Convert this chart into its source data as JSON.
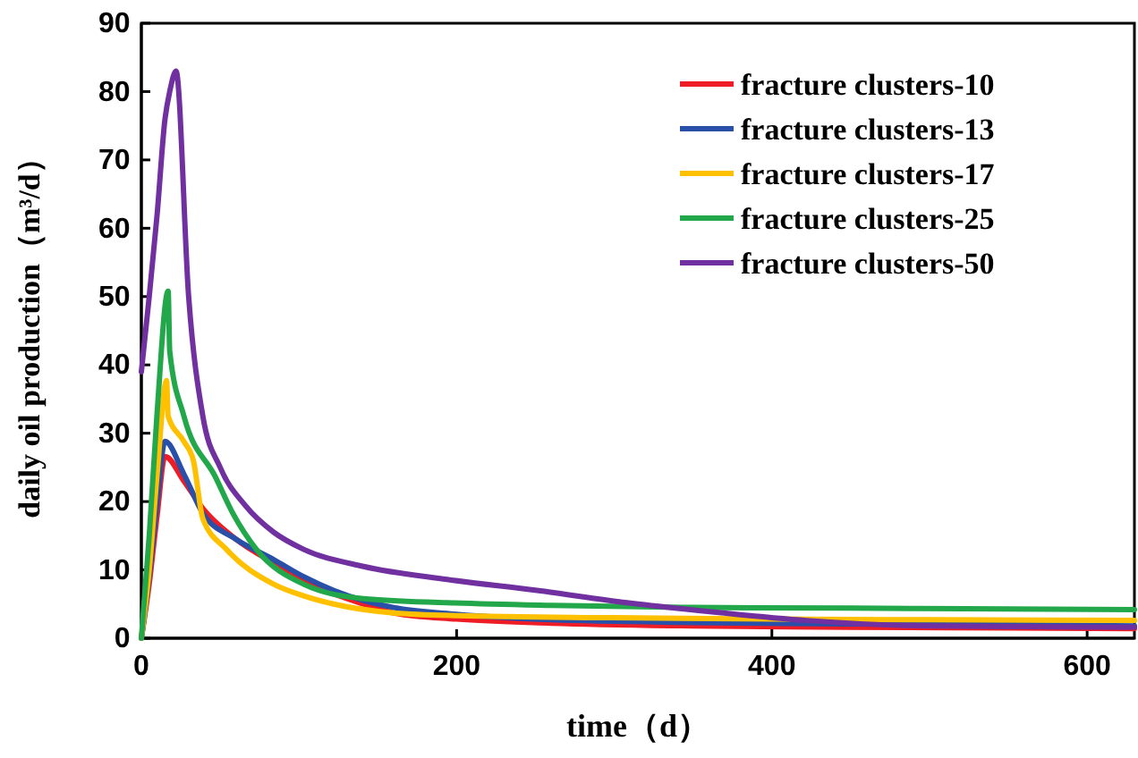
{
  "chart_data": {
    "type": "line",
    "xlabel": "time（d）",
    "ylabel": "daily oil production（m³/d）",
    "xlim": [
      0,
      630
    ],
    "xticks": [
      0,
      200,
      400,
      600
    ],
    "ylim": [
      0,
      90
    ],
    "yticks": [
      0,
      10,
      20,
      30,
      40,
      50,
      60,
      70,
      80,
      90
    ],
    "grid": false,
    "legend": "top right",
    "marker": "none",
    "line_style": "solid",
    "series": [
      {
        "name": "fracture clusters-10",
        "color": "#ee1c25",
        "x": [
          0,
          5,
          10,
          15,
          27,
          39,
          60,
          84,
          103,
          122,
          141,
          160,
          200,
          260,
          350,
          450,
          550,
          630
        ],
        "values": [
          0,
          8,
          18,
          26.6,
          23,
          19,
          14.5,
          11,
          8.5,
          6.5,
          5,
          3.7,
          2.8,
          2.2,
          1.8,
          1.6,
          1.5,
          1.4
        ]
      },
      {
        "name": "fracture clusters-13",
        "color": "#2a4fa8",
        "x": [
          0,
          5,
          10,
          15,
          27,
          39,
          60,
          84,
          103,
          122,
          141,
          160,
          200,
          260,
          350,
          450,
          550,
          630
        ],
        "values": [
          0,
          9,
          20,
          28.8,
          24,
          18.3,
          14.5,
          11.5,
          9,
          7,
          5.5,
          4.5,
          3.5,
          2.7,
          2.3,
          2.1,
          2,
          1.8
        ]
      },
      {
        "name": "fracture clusters-17",
        "color": "#ffc000",
        "x": [
          0,
          5,
          10,
          16,
          17,
          27,
          33,
          39,
          54,
          84,
          103,
          122,
          160,
          200,
          300,
          400,
          500,
          630
        ],
        "values": [
          0,
          10,
          24,
          37.7,
          32.5,
          28.8,
          26,
          17.5,
          13,
          7.9,
          6.2,
          5,
          3.7,
          3.3,
          3,
          2.8,
          2.7,
          2.6
        ]
      },
      {
        "name": "fracture clusters-25",
        "color": "#22a84a",
        "x": [
          0,
          5,
          10,
          17,
          18,
          27,
          47,
          58,
          73,
          103,
          141,
          194,
          260,
          350,
          450,
          550,
          630
        ],
        "values": [
          0,
          15,
          33,
          50.8,
          42,
          32.5,
          23.6,
          18.3,
          13,
          7.9,
          5.8,
          5.2,
          4.8,
          4.5,
          4.4,
          4.3,
          4.2
        ]
      },
      {
        "name": "fracture clusters-50",
        "color": "#7030a0",
        "x": [
          0,
          5,
          10,
          15,
          18,
          22,
          30,
          39,
          50,
          66,
          84,
          103,
          141,
          194,
          251,
          308,
          365,
          422,
          498,
          560,
          630
        ],
        "values": [
          39,
          50,
          62,
          76,
          80,
          83,
          50,
          32.5,
          25,
          19.4,
          15.5,
          13,
          10.5,
          8.6,
          7,
          5.2,
          3.8,
          2.6,
          1.8,
          1.7,
          1.6
        ]
      }
    ]
  }
}
